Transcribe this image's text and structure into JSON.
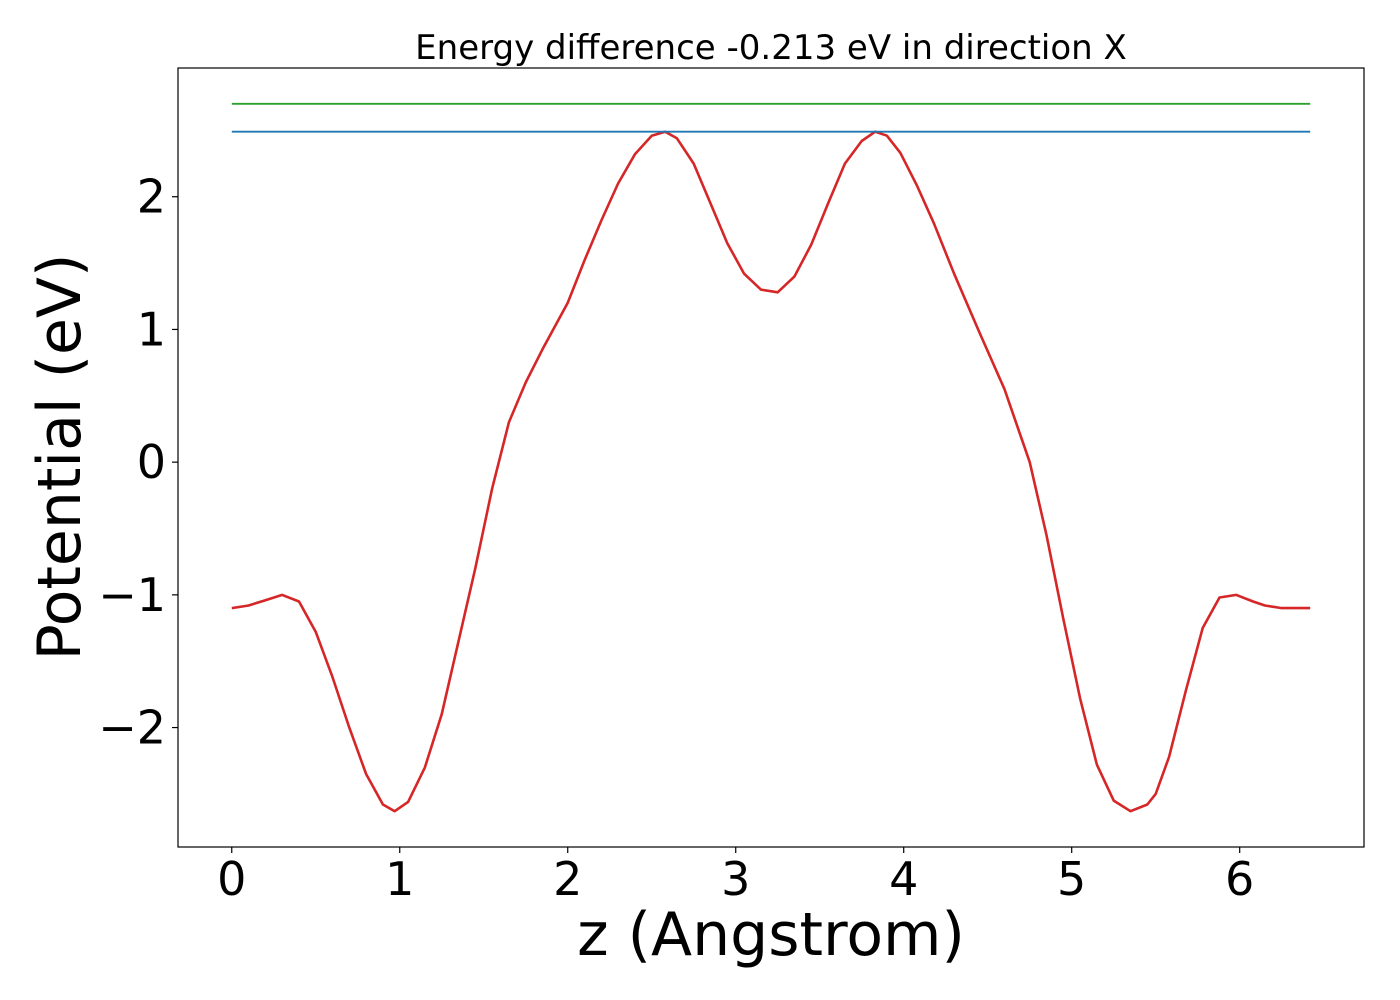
{
  "chart_data": {
    "type": "line",
    "title": "Energy difference -0.213 eV in direction X",
    "xlabel": "z (Angstrom)",
    "ylabel": "Potential (eV)",
    "xlim": [
      -0.32,
      6.74
    ],
    "ylim": [
      -2.9,
      2.97
    ],
    "xticks": [
      0,
      1,
      2,
      3,
      4,
      5,
      6
    ],
    "xtick_labels": [
      "0",
      "1",
      "2",
      "3",
      "4",
      "5",
      "6"
    ],
    "yticks": [
      -2,
      -1,
      0,
      1,
      2
    ],
    "ytick_labels": [
      "−2",
      "−1",
      "0",
      "1",
      "2"
    ],
    "grid": false,
    "legend": "none",
    "series": [
      {
        "color": "#d62728",
        "x": [
          0,
          0.1,
          0.2,
          0.3,
          0.4,
          0.5,
          0.6,
          0.7,
          0.8,
          0.9,
          0.97,
          1.05,
          1.15,
          1.25,
          1.35,
          1.45,
          1.55,
          1.65,
          1.75,
          1.85,
          2.0,
          2.1,
          2.2,
          2.3,
          2.4,
          2.5,
          2.58,
          2.65,
          2.75,
          2.85,
          2.95,
          3.05,
          3.15,
          3.25,
          3.35,
          3.45,
          3.55,
          3.65,
          3.75,
          3.83,
          3.9,
          3.98,
          4.08,
          4.18,
          4.3,
          4.45,
          4.6,
          4.75,
          4.85,
          4.95,
          5.05,
          5.15,
          5.25,
          5.35,
          5.45,
          5.5,
          5.58,
          5.68,
          5.78,
          5.88,
          5.98,
          6.08,
          6.15,
          6.25,
          6.35,
          6.42
        ],
        "y": [
          -1.1,
          -1.08,
          -1.04,
          -1.0,
          -1.05,
          -1.28,
          -1.62,
          -2.0,
          -2.35,
          -2.58,
          -2.63,
          -2.56,
          -2.3,
          -1.9,
          -1.35,
          -0.8,
          -0.2,
          0.3,
          0.6,
          0.85,
          1.2,
          1.52,
          1.82,
          2.1,
          2.32,
          2.46,
          2.49,
          2.44,
          2.25,
          1.95,
          1.65,
          1.42,
          1.3,
          1.28,
          1.4,
          1.64,
          1.95,
          2.25,
          2.42,
          2.49,
          2.46,
          2.33,
          2.08,
          1.8,
          1.42,
          0.98,
          0.55,
          0.0,
          -0.55,
          -1.18,
          -1.78,
          -2.28,
          -2.55,
          -2.63,
          -2.58,
          -2.5,
          -2.22,
          -1.72,
          -1.25,
          -1.02,
          -1.0,
          -1.05,
          -1.08,
          -1.1,
          -1.1,
          -1.1
        ]
      },
      {
        "color": "#1f77b4",
        "x": [
          0,
          6.42
        ],
        "y": [
          2.49,
          2.49
        ]
      },
      {
        "color": "#2ca02c",
        "x": [
          0,
          6.42
        ],
        "y": [
          2.7,
          2.7
        ]
      }
    ]
  }
}
